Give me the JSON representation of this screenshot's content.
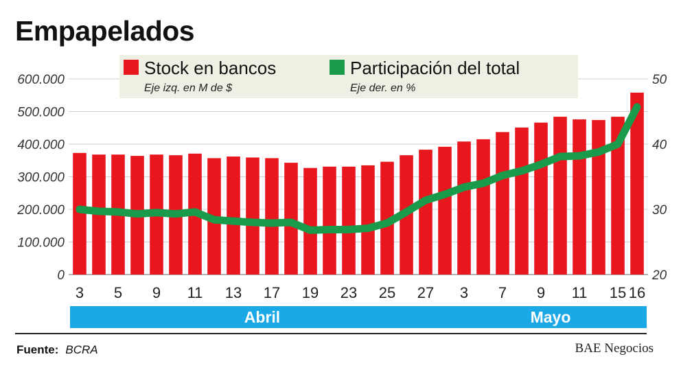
{
  "title": "Empapelados",
  "source_label": "Fuente:",
  "source_value": "BCRA",
  "credit": "BAE Negocios",
  "colors": {
    "bar": "#e8171d",
    "line": "#1a9b4c",
    "legend_bg": "#efefe4",
    "month_band": "#1aa8e6"
  },
  "chart_data": {
    "type": "bar",
    "categories": [
      "3",
      "4",
      "5",
      "6",
      "9",
      "10",
      "11",
      "12",
      "13",
      "16",
      "17",
      "18",
      "19",
      "20",
      "23",
      "24",
      "25",
      "26",
      "27",
      "30",
      "3",
      "4",
      "7",
      "8",
      "9",
      "10",
      "11",
      "14",
      "15",
      "16"
    ],
    "x_tick_labels": [
      "3",
      "5",
      "9",
      "11",
      "13",
      "17",
      "19",
      "23",
      "25",
      "27",
      "3",
      "7",
      "9",
      "11",
      "15",
      "16"
    ],
    "x_tick_index": [
      0,
      2,
      4,
      6,
      8,
      10,
      12,
      14,
      16,
      18,
      20,
      22,
      24,
      26,
      28,
      29
    ],
    "month_labels": [
      {
        "label": "Abril",
        "start": 0,
        "end": 19
      },
      {
        "label": "Mayo",
        "start": 20,
        "end": 29
      }
    ],
    "legend": [
      {
        "name": "Stock en bancos",
        "note": "Eje izq. en M de $"
      },
      {
        "name": "Participación del total",
        "note": "Eje der. en %"
      }
    ],
    "series": [
      {
        "name": "Stock en bancos",
        "type": "bar",
        "axis": "left",
        "values": [
          373000,
          368000,
          368000,
          364000,
          368000,
          366000,
          371000,
          357000,
          362000,
          359000,
          357000,
          343000,
          327000,
          331000,
          331000,
          335000,
          346000,
          366000,
          383000,
          392000,
          408000,
          415000,
          437000,
          451000,
          466000,
          484000,
          476000,
          474000,
          484000,
          558000
        ]
      },
      {
        "name": "Participación del total",
        "type": "line",
        "axis": "right",
        "values": [
          30.0,
          29.7,
          29.6,
          29.3,
          29.5,
          29.3,
          29.6,
          28.4,
          28.2,
          28.0,
          27.9,
          28.0,
          26.8,
          26.9,
          26.9,
          27.1,
          27.9,
          29.6,
          31.4,
          32.3,
          33.4,
          34.0,
          35.2,
          35.9,
          36.9,
          38.1,
          38.2,
          38.8,
          40.0,
          45.7
        ]
      }
    ],
    "y_left": {
      "min": 0,
      "max": 600000,
      "ticks": [
        0,
        100000,
        200000,
        300000,
        400000,
        500000,
        600000
      ],
      "tick_labels": [
        "0",
        "100.000",
        "200.000",
        "300.000",
        "400.000",
        "500.000",
        "600.000"
      ]
    },
    "y_right": {
      "min": 20,
      "max": 50,
      "ticks": [
        20,
        30,
        40,
        50
      ],
      "tick_labels": [
        "20",
        "30",
        "40",
        "50"
      ]
    },
    "grid": true
  }
}
